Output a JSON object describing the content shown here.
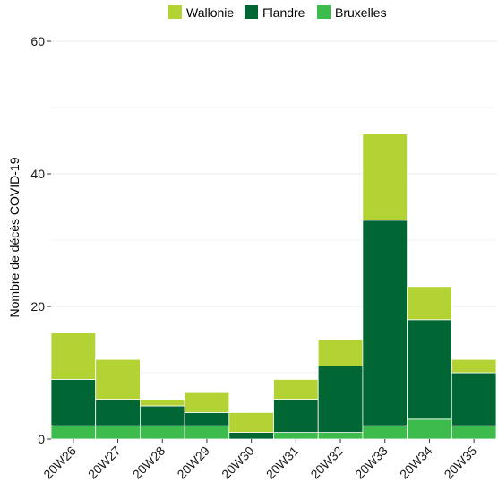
{
  "chart_data": {
    "type": "bar",
    "stacked": true,
    "categories": [
      "20W26",
      "20W27",
      "20W28",
      "20W29",
      "20W30",
      "20W31",
      "20W32",
      "20W33",
      "20W34",
      "20W35"
    ],
    "series": [
      {
        "name": "Bruxelles",
        "color": "#3dbb4c",
        "values": [
          2,
          2,
          2,
          2,
          0,
          1,
          1,
          2,
          3,
          2
        ]
      },
      {
        "name": "Flandre",
        "color": "#006633",
        "values": [
          7,
          4,
          3,
          2,
          1,
          5,
          10,
          31,
          15,
          8
        ]
      },
      {
        "name": "Wallonie",
        "color": "#b3d335",
        "values": [
          7,
          6,
          1,
          3,
          3,
          3,
          4,
          13,
          5,
          2
        ]
      }
    ],
    "legend_order": [
      "Wallonie",
      "Flandre",
      "Bruxelles"
    ],
    "ylabel": "Nombre de décès COVID-19",
    "xlabel": "",
    "ylim": [
      0,
      60
    ],
    "yticks": [
      0,
      20,
      40,
      60
    ],
    "legend_position": "top",
    "grid": true
  }
}
